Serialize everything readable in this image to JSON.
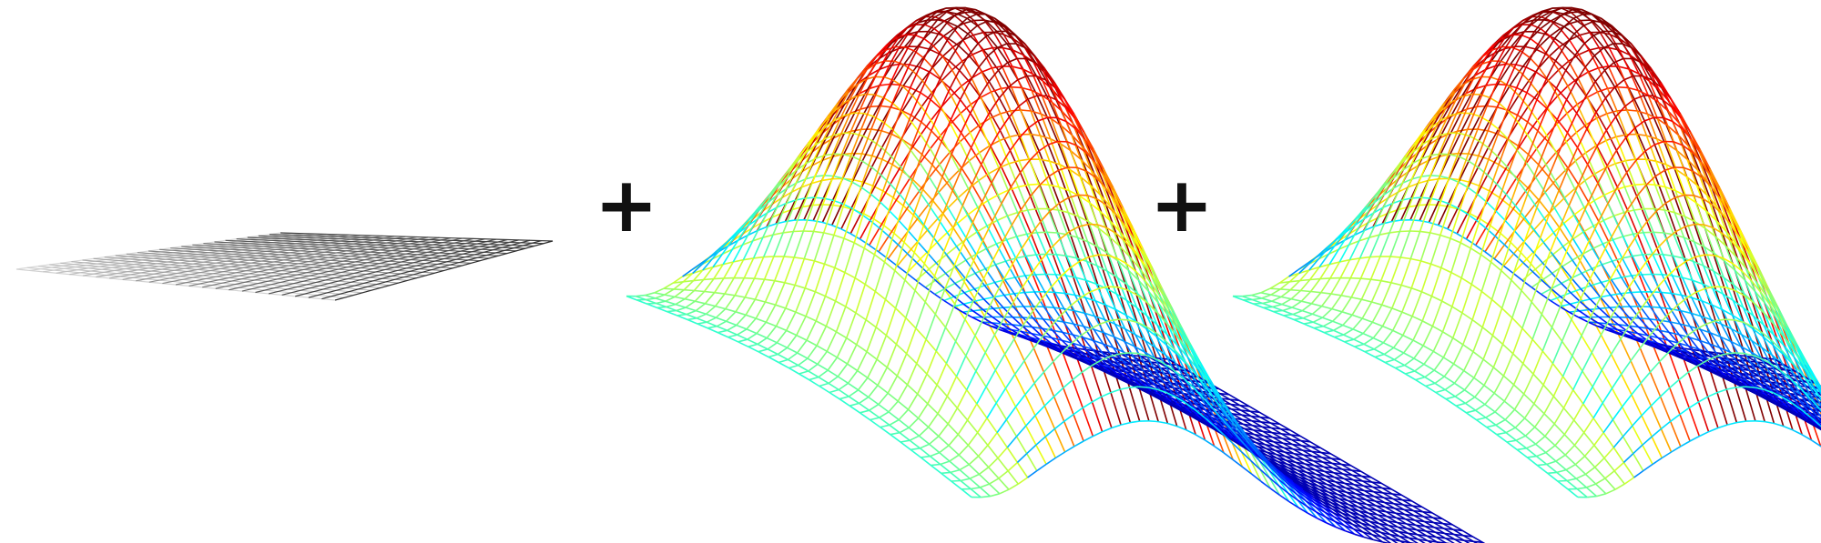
{
  "operators": [
    "+",
    "+"
  ],
  "panels": [
    {
      "kind": "flat-plane",
      "colormap": "grayscale"
    },
    {
      "kind": "curved-surface",
      "colormap": "jet"
    },
    {
      "kind": "curved-surface-with-path",
      "colormap": "jet",
      "path_color": "#4a1a5e",
      "minimum_marker": "×",
      "marker_color": "#1a5a1a"
    }
  ]
}
